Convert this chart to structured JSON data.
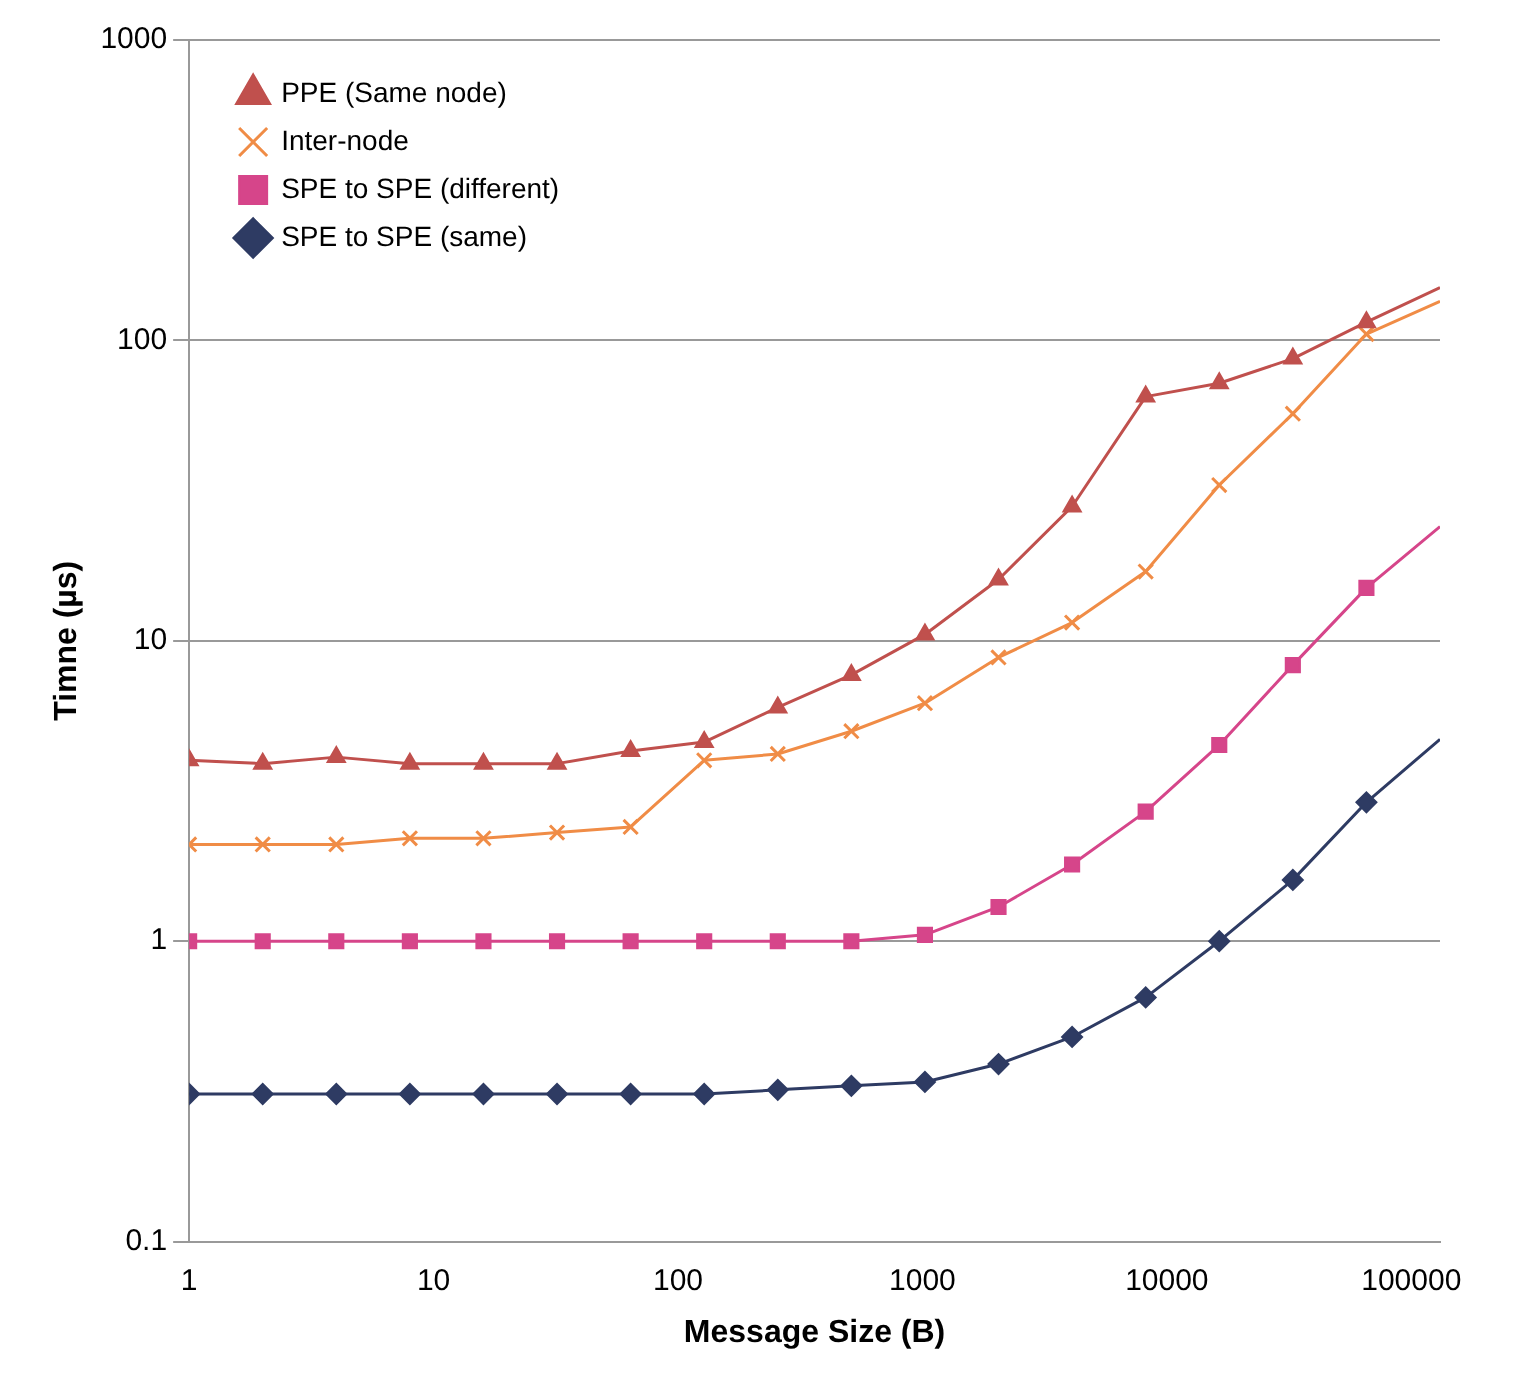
{
  "chart_data": {
    "type": "line",
    "xlabel": "Message Size (B)",
    "ylabel": "Timne (µs)",
    "log": "xy",
    "grid": "y",
    "legend": "top left",
    "x": [
      1,
      2,
      4,
      8,
      16,
      32,
      64,
      128,
      256,
      512,
      1024,
      2048,
      4096,
      8192,
      16384,
      32768,
      65536,
      131072
    ],
    "xlim": [
      1,
      131072
    ],
    "xticks": [
      1,
      10,
      100,
      1000,
      10000,
      100000
    ],
    "ylim": [
      0.1,
      1000
    ],
    "yticks": [
      0.1,
      1,
      10,
      100,
      1000
    ],
    "series": [
      {
        "name": "PPE (Same node)",
        "color": "#c0504d",
        "marker": "triangle",
        "values": [
          4,
          3.9,
          4.1,
          3.9,
          3.9,
          3.9,
          4.3,
          4.6,
          6,
          7.7,
          10.5,
          16,
          28,
          65,
          72,
          87,
          115,
          150
        ]
      },
      {
        "name": "Inter-node",
        "color": "#f08c46",
        "marker": "cross",
        "values": [
          2.1,
          2.1,
          2.1,
          2.2,
          2.2,
          2.3,
          2.4,
          4,
          4.2,
          5,
          6.2,
          8.8,
          11.5,
          17,
          33,
          57,
          105,
          135
        ]
      },
      {
        "name": "SPE to SPE (different)",
        "color": "#d6458a",
        "marker": "square",
        "values": [
          1,
          1,
          1,
          1,
          1,
          1,
          1,
          1,
          1,
          1,
          1.05,
          1.3,
          1.8,
          2.7,
          4.5,
          8.3,
          15,
          24
        ]
      },
      {
        "name": "SPE to SPE (same)",
        "color": "#2e3b63",
        "marker": "diamond",
        "values": [
          0.31,
          0.31,
          0.31,
          0.31,
          0.31,
          0.31,
          0.31,
          0.31,
          0.32,
          0.33,
          0.34,
          0.39,
          0.48,
          0.65,
          1,
          1.6,
          2.9,
          4.7
        ]
      }
    ]
  }
}
